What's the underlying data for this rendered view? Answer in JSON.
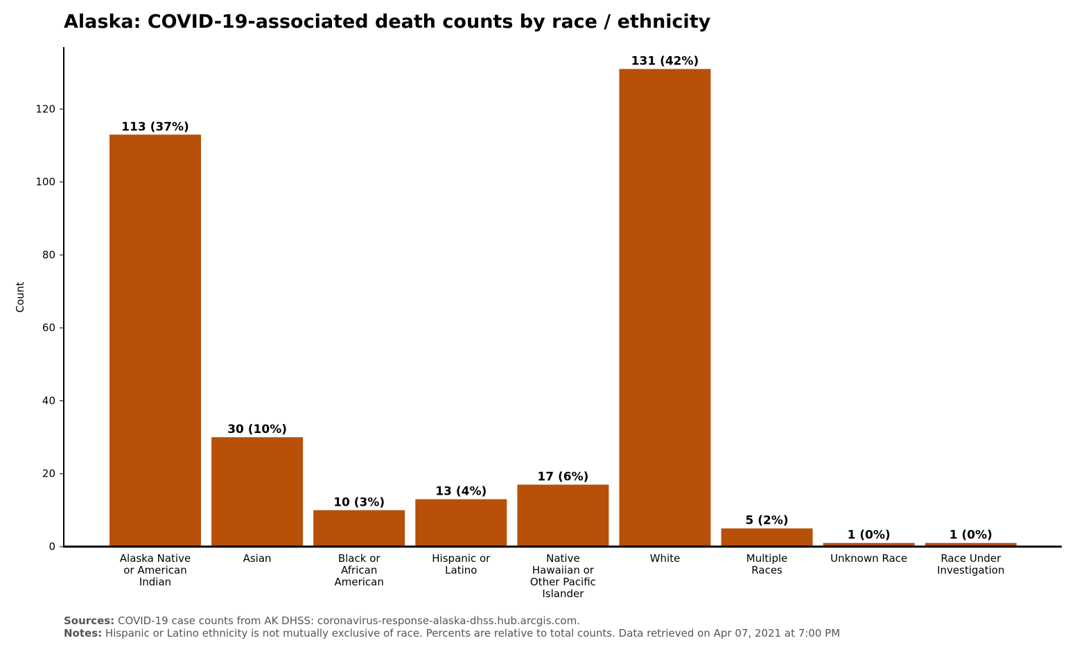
{
  "footer": {
    "sources_label": "Sources:",
    "sources_text": "COVID-19 case counts from AK DHSS: coronavirus-response-alaska-dhss.hub.arcgis.com.",
    "notes_label": "Notes:",
    "notes_text": "Hispanic or Latino ethnicity is not mutually exclusive of race. Percents are relative to total counts. Data retrieved on Apr 07, 2021 at 7:00 PM"
  },
  "chart_data": {
    "type": "bar",
    "title": "Alaska: COVID-19-associated death counts by race / ethnicity",
    "xlabel": "",
    "ylabel": "Count",
    "ylim": [
      0,
      137
    ],
    "yticks": [
      0,
      20,
      40,
      60,
      80,
      100,
      120
    ],
    "bar_color": "#b8500a",
    "grid": false,
    "categories": [
      [
        "Alaska Native",
        "or American",
        "Indian"
      ],
      [
        "Asian"
      ],
      [
        "Black or",
        "African",
        "American"
      ],
      [
        "Hispanic or",
        "Latino"
      ],
      [
        "Native",
        "Hawaiian or",
        "Other Pacific",
        "Islander"
      ],
      [
        "White"
      ],
      [
        "Multiple",
        "Races"
      ],
      [
        "Unknown Race"
      ],
      [
        "Race Under",
        "Investigation"
      ]
    ],
    "values": [
      113,
      30,
      10,
      13,
      17,
      131,
      5,
      1,
      1
    ],
    "data_labels": [
      "113 (37%)",
      "30 (10%)",
      "10 (3%)",
      "13 (4%)",
      "17 (6%)",
      "131 (42%)",
      "5 (2%)",
      "1 (0%)",
      "1 (0%)"
    ]
  }
}
